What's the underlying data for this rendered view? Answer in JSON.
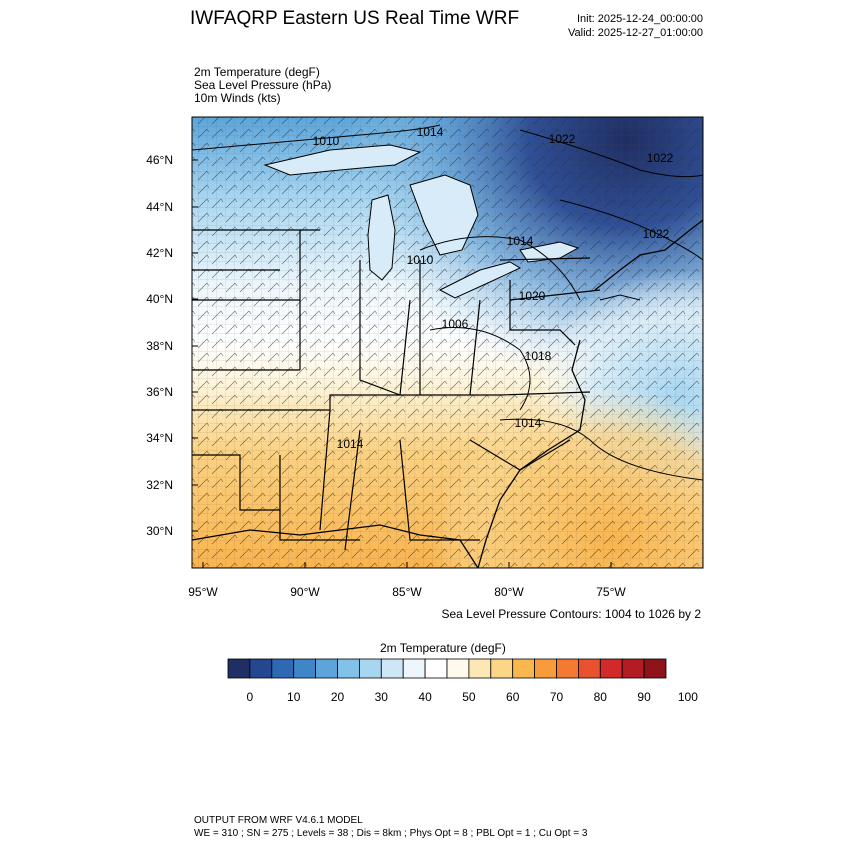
{
  "header": {
    "title": "IWFAQRP Eastern US Real Time WRF",
    "init": "Init: 2025-12-24_00:00:00",
    "valid": "Valid: 2025-12-27_01:00:00"
  },
  "fields": [
    "2m Temperature   (degF)",
    "Sea Level Pressure   (hPa)",
    "10m Winds   (kts)"
  ],
  "map": {
    "lat_labels": [
      "46°N",
      "44°N",
      "42°N",
      "40°N",
      "38°N",
      "36°N",
      "34°N",
      "32°N",
      "30°N"
    ],
    "lon_labels": [
      "95°W",
      "90°W",
      "85°W",
      "80°W",
      "75°W"
    ],
    "pressure_labels": [
      "1010",
      "1014",
      "1022",
      "1022",
      "1014",
      "1010",
      "1020",
      "1006",
      "1018",
      "1014",
      "1014",
      "1022"
    ]
  },
  "contour_note": "Sea Level Pressure Contours: 1004 to 1026 by 2",
  "colorbar": {
    "title": "2m Temperature  (degF)",
    "colors": [
      "#1f2e64",
      "#24478f",
      "#2f68b4",
      "#3f86c8",
      "#5ca4d9",
      "#82c1e8",
      "#a8d6f1",
      "#cde7f7",
      "#edf6fb",
      "#ffffff",
      "#fffaec",
      "#fde8b5",
      "#fbd686",
      "#f9b74e",
      "#f79b3b",
      "#f47a31",
      "#e9522e",
      "#d22a2a",
      "#b31c22",
      "#8e131a"
    ],
    "labels": [
      "0",
      "10",
      "20",
      "30",
      "40",
      "50",
      "60",
      "70",
      "80",
      "90",
      "100"
    ]
  },
  "footer": {
    "line1": "OUTPUT FROM WRF V4.6.1 MODEL",
    "line2": "WE = 310 ; SN = 275 ; Levels = 38 ; Dis = 8km ; Phys Opt = 8 ; PBL Opt = 1 ; Cu Opt = 3"
  }
}
